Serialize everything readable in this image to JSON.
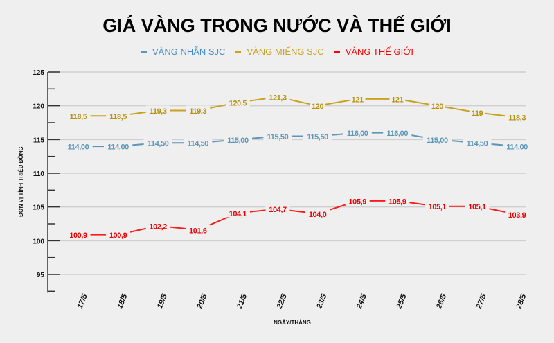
{
  "chart_data": {
    "type": "line",
    "title": "GIÁ VÀNG TRONG NƯỚC VÀ THẾ GIỚI",
    "xlabel": "NGÀY/THÁNG",
    "ylabel": "ĐƠN VỊ TÍNH TRIỆU ĐỒNG",
    "categories": [
      "17/5",
      "18/5",
      "19/5",
      "20/5",
      "21/5",
      "22/5",
      "23/5",
      "24/5",
      "25/5",
      "26/5",
      "27/5",
      "28/5"
    ],
    "ylim": [
      92.5,
      125
    ],
    "yticks": [
      95,
      100,
      105,
      110,
      115,
      120,
      125
    ],
    "grid": true,
    "legend": "top",
    "series": [
      {
        "name": "VÀNG NHẪN SJC",
        "color": "#5b97b8",
        "label_color": "#5b97b8",
        "values": [
          114.0,
          114.0,
          114.5,
          114.5,
          115.0,
          115.5,
          115.5,
          116.0,
          116.0,
          115.0,
          114.5,
          114.0
        ],
        "labels": [
          "114,00",
          "114,00",
          "114,50",
          "114,50",
          "115,00",
          "115,50",
          "115,50",
          "116,00",
          "116,00",
          "115,00",
          "114,50",
          "114,00"
        ]
      },
      {
        "name": "VÀNG MIẾNG SJC",
        "color": "#c9a21d",
        "label_color": "#b8910e",
        "values": [
          118.5,
          118.5,
          119.3,
          119.3,
          120.5,
          121.3,
          120,
          121,
          121,
          120,
          119,
          118.3
        ],
        "labels": [
          "118,5",
          "118,5",
          "119,3",
          "119,3",
          "120,5",
          "121,3",
          "120",
          "121",
          "121",
          "120",
          "119",
          "118,3"
        ]
      },
      {
        "name": "VÀNG THẾ GIỚI",
        "color": "#ff1a1a",
        "label_color": "#ee0000",
        "values": [
          100.9,
          100.9,
          102.2,
          101.6,
          104.1,
          104.7,
          104.0,
          105.9,
          105.9,
          105.1,
          105.1,
          103.9
        ],
        "labels": [
          "100,9",
          "100,9",
          "102,2",
          "101,6",
          "104,1",
          "104,7",
          "104,0",
          "105,9",
          "105,9",
          "105,1",
          "105,1",
          "103,9"
        ]
      }
    ]
  }
}
